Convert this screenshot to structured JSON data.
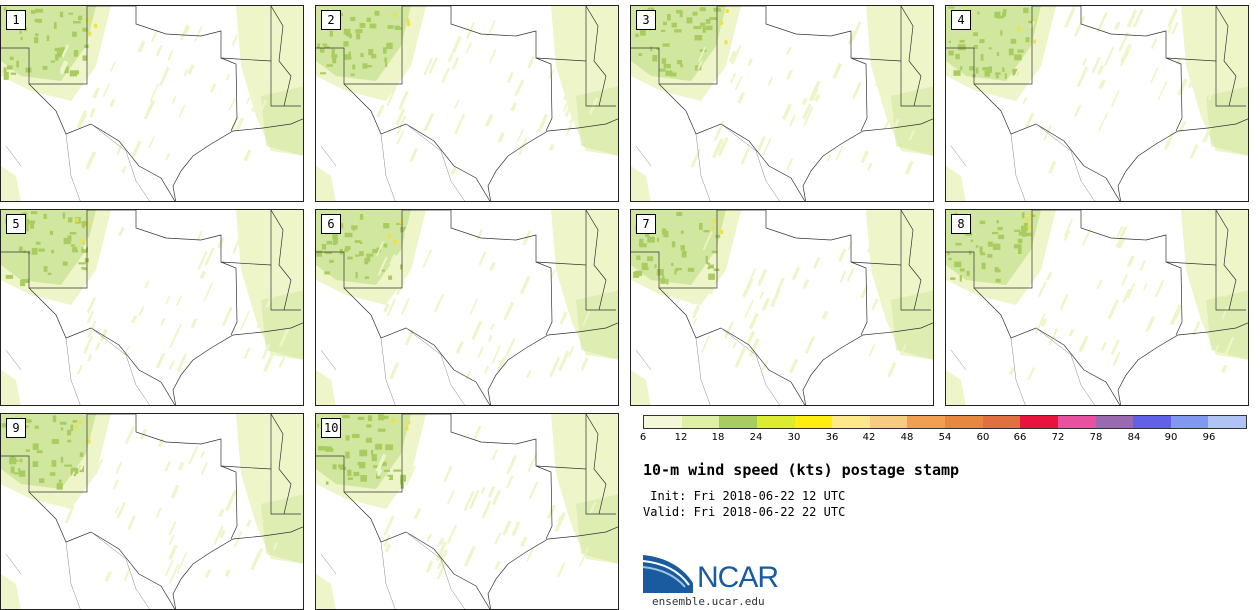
{
  "panels": [
    {
      "label": "1"
    },
    {
      "label": "2"
    },
    {
      "label": "3"
    },
    {
      "label": "4"
    },
    {
      "label": "5"
    },
    {
      "label": "6"
    },
    {
      "label": "7"
    },
    {
      "label": "8"
    },
    {
      "label": "9"
    },
    {
      "label": "10"
    }
  ],
  "colorbar": {
    "ticks": [
      "6",
      "12",
      "18",
      "24",
      "30",
      "36",
      "42",
      "48",
      "54",
      "60",
      "66",
      "72",
      "78",
      "84",
      "90",
      "96"
    ],
    "colors": [
      "#f4f8d8",
      "#e0efa8",
      "#a8cc60",
      "#dcec30",
      "#ffee10",
      "#fde88a",
      "#f8cc80",
      "#f0a050",
      "#e88840",
      "#e07040",
      "#e8143c",
      "#e850a0",
      "#9a6ab0",
      "#6060e8",
      "#8098f0",
      "#b0c4f4"
    ]
  },
  "title": "10-m wind speed (kts) postage stamp",
  "init_line": " Init: Fri 2018-06-22 12 UTC",
  "valid_line": "Valid: Fri 2018-06-22 22 UTC",
  "logo": {
    "text": "NCAR",
    "url": "ensemble.ucar.edu"
  },
  "colors": {
    "light_wind": "#eef5c8",
    "medium_wind": "#cde59a",
    "strong_wind": "#a8cc60",
    "gust": "#f0e040"
  }
}
